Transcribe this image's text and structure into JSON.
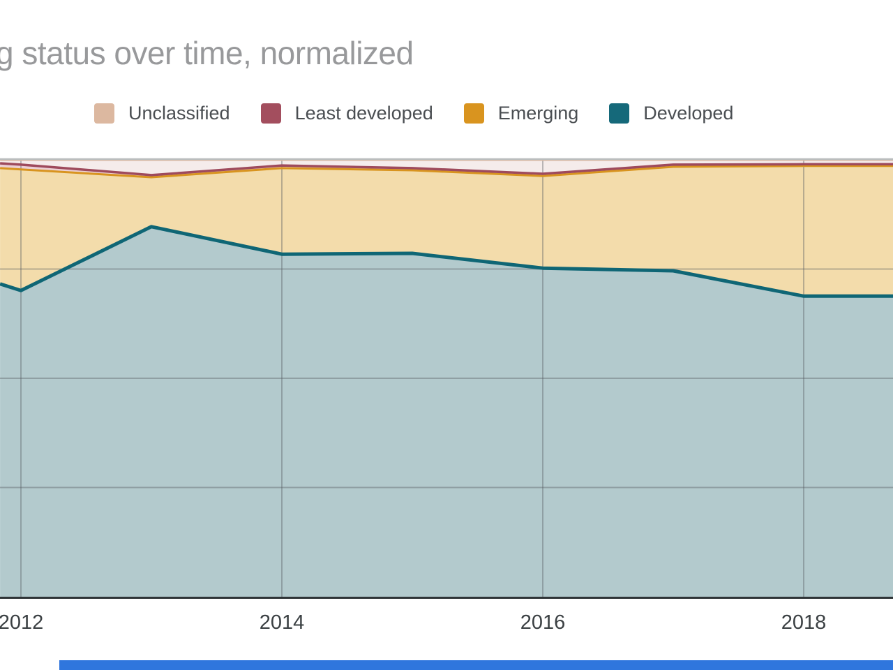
{
  "title": "g status over time, normalized",
  "legend": {
    "items": [
      {
        "label": "Unclassified",
        "color": "#dcb8a0"
      },
      {
        "label": "Least developed",
        "color": "#a34e5e"
      },
      {
        "label": "Emerging",
        "color": "#d9941f"
      },
      {
        "label": "Developed",
        "color": "#15697a"
      }
    ]
  },
  "chart_data": {
    "type": "area",
    "stacked": true,
    "normalized": true,
    "title": "g status over time, normalized",
    "xlabel": "",
    "ylabel": "",
    "ylim": [
      0,
      100
    ],
    "grid": true,
    "grid_color": "rgba(84,90,94,0.38)",
    "top_line_color": "#b9bdbe",
    "axis_line_color": "#2f3437",
    "x": [
      2011.84,
      2012,
      2013,
      2014,
      2015,
      2016,
      2017,
      2018,
      2018.685
    ],
    "x_ticks": [
      {
        "label": "2012",
        "year": 2012
      },
      {
        "label": "2014",
        "year": 2014
      },
      {
        "label": "2016",
        "year": 2016
      },
      {
        "label": "2018",
        "year": 2018
      }
    ],
    "y_gridlines_pct": [
      25,
      50,
      75
    ],
    "series": [
      {
        "name": "Developed",
        "fill": "#b3cacd",
        "stroke": "#0f6675",
        "stroke_width": 5,
        "values": [
          71.6,
          70.1,
          84.7,
          78.4,
          78.6,
          75.2,
          74.6,
          68.8,
          68.8
        ]
      },
      {
        "name": "Emerging",
        "fill": "#f3dcab",
        "stroke": "#d8941f",
        "stroke_width": 3,
        "values": [
          26.5,
          27.7,
          11.3,
          19.7,
          19.0,
          21.1,
          23.8,
          29.8,
          29.8
        ]
      },
      {
        "name": "Least developed",
        "fill": "#ecd0d4",
        "stroke": "#9e4a5c",
        "stroke_width": 3.5,
        "values": [
          1.1,
          1.1,
          0.5,
          0.6,
          0.5,
          0.5,
          0.5,
          0.4,
          0.4
        ]
      },
      {
        "name": "Unclassified",
        "fill": "#f5eceb",
        "stroke": "#dcb8a0",
        "stroke_width": 3,
        "values": [
          0.8,
          1.1,
          3.5,
          1.3,
          1.9,
          3.2,
          1.1,
          1.0,
          1.0
        ]
      }
    ],
    "legend_position": "top"
  },
  "colors": {
    "bottom_bar": "#2f76dd",
    "title_text": "#98999b",
    "tick_text": "#3b4043"
  }
}
